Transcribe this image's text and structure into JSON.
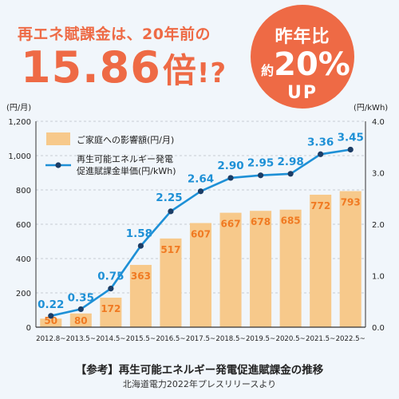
{
  "headline": {
    "top_text": "再エネ賦課金は、20年前の",
    "big_number": "15.86",
    "big_suffix": "倍",
    "big_exclaim": "!?"
  },
  "badge": {
    "line1": "昨年比",
    "prefix": "約",
    "value": "20%",
    "line3": "UP"
  },
  "footer": {
    "title": "【参考】再生可能エネルギー発電促進賦課金の推移",
    "source": "北海道電力2022年プレスリリースより"
  },
  "colors": {
    "accent": "#ee6a45",
    "bar": "#f7c98b",
    "bar_label": "#f07a22",
    "line": "#1e90d6",
    "line_label": "#1e90d6"
  },
  "chart_data": {
    "type": "bar+line",
    "categories": [
      "2012.8~",
      "2013.5~",
      "2014.5~",
      "2015.5~",
      "2016.5~",
      "2017.5~",
      "2018.5~",
      "2019.5~",
      "2020.5~",
      "2021.5~",
      "2022.5~"
    ],
    "series": [
      {
        "name": "ご家庭への影響額(円/月)",
        "type": "bar",
        "axis": "left",
        "values": [
          50,
          80,
          172,
          363,
          517,
          607,
          667,
          678,
          685,
          772,
          793
        ]
      },
      {
        "name": "再生可能エネルギー発電促進賦課金単価(円/kWh)",
        "legend_lines": [
          "再生可能エネルギー発電",
          "促進賦課金単価(円/kWh)"
        ],
        "type": "line",
        "axis": "right",
        "values": [
          0.22,
          0.35,
          0.75,
          1.58,
          2.25,
          2.64,
          2.9,
          2.95,
          2.98,
          3.36,
          3.45
        ],
        "labels": [
          "0.22",
          "0.35",
          "0.75",
          "1.58",
          "2.25",
          "2.64",
          "2.90",
          "2.95",
          "2.98",
          "3.36",
          "3.45"
        ]
      }
    ],
    "left_axis": {
      "unit": "(円/月)",
      "ylim": [
        0,
        1200
      ],
      "ticks": [
        "0",
        "200",
        "400",
        "600",
        "800",
        "1,000",
        "1,200"
      ]
    },
    "right_axis": {
      "unit": "(円/kWh)",
      "ylim": [
        0,
        4.0
      ],
      "ticks": [
        "0.0",
        "1.0",
        "2.0",
        "3.0",
        "4.0"
      ]
    },
    "grid": true,
    "legend_position": "top-left"
  }
}
